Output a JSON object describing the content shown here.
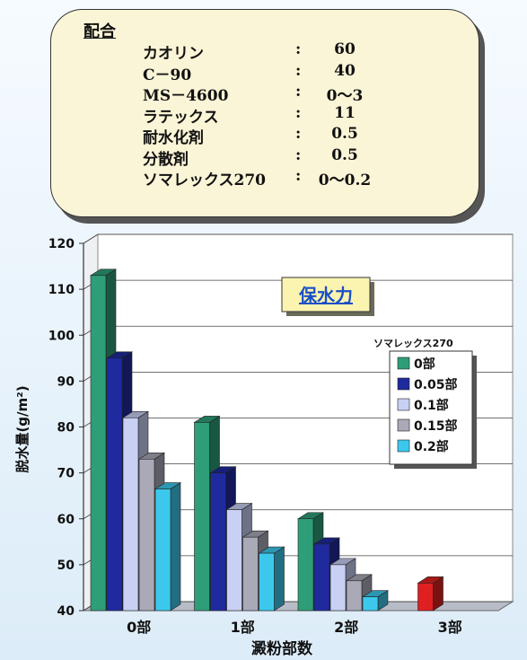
{
  "recipe": {
    "title": "配合",
    "items": [
      {
        "name": "カオリン",
        "colon": ":",
        "value": "60"
      },
      {
        "name": "C－90",
        "colon": ":",
        "value": "40"
      },
      {
        "name": "MS－4600",
        "colon": ":",
        "value": "0〜3"
      },
      {
        "name": "ラテックス",
        "colon": ":",
        "value": "11"
      },
      {
        "name": "耐水化剤",
        "colon": ":",
        "value": "0.5"
      },
      {
        "name": "分散剤",
        "colon": ":",
        "value": "0.5"
      },
      {
        "name": "ソマレックス270",
        "colon": ":",
        "value": "0〜0.2"
      }
    ]
  },
  "chart_data": {
    "type": "bar",
    "title": "保水力",
    "xlabel": "澱粉部数",
    "ylabel": "脱水量(g/m²)",
    "categories": [
      "0部",
      "1部",
      "2部",
      "3部"
    ],
    "yticks": [
      "40",
      "50",
      "60",
      "70",
      "80",
      "90",
      "100",
      "110",
      "120"
    ],
    "ylim": [
      40,
      120
    ],
    "grid": true,
    "legend_title": "ソマレックス270",
    "legend_position": "right",
    "series": [
      {
        "name": "0部",
        "color": "#2e9e78",
        "values": [
          113,
          81,
          60,
          null
        ]
      },
      {
        "name": "0.05部",
        "color": "#1f2a9e",
        "values": [
          95,
          70,
          54.5,
          null
        ]
      },
      {
        "name": "0.1部",
        "color": "#c8d0f4",
        "values": [
          82,
          62,
          50,
          null
        ]
      },
      {
        "name": "0.15部",
        "color": "#a9a9b8",
        "values": [
          73,
          56,
          46.5,
          null
        ]
      },
      {
        "name": "0.2部",
        "color": "#3cc8ec",
        "values": [
          66.5,
          52.5,
          43,
          null
        ]
      }
    ],
    "extra_bar": {
      "category": "3部",
      "value": 46,
      "color": "#e02020"
    }
  }
}
